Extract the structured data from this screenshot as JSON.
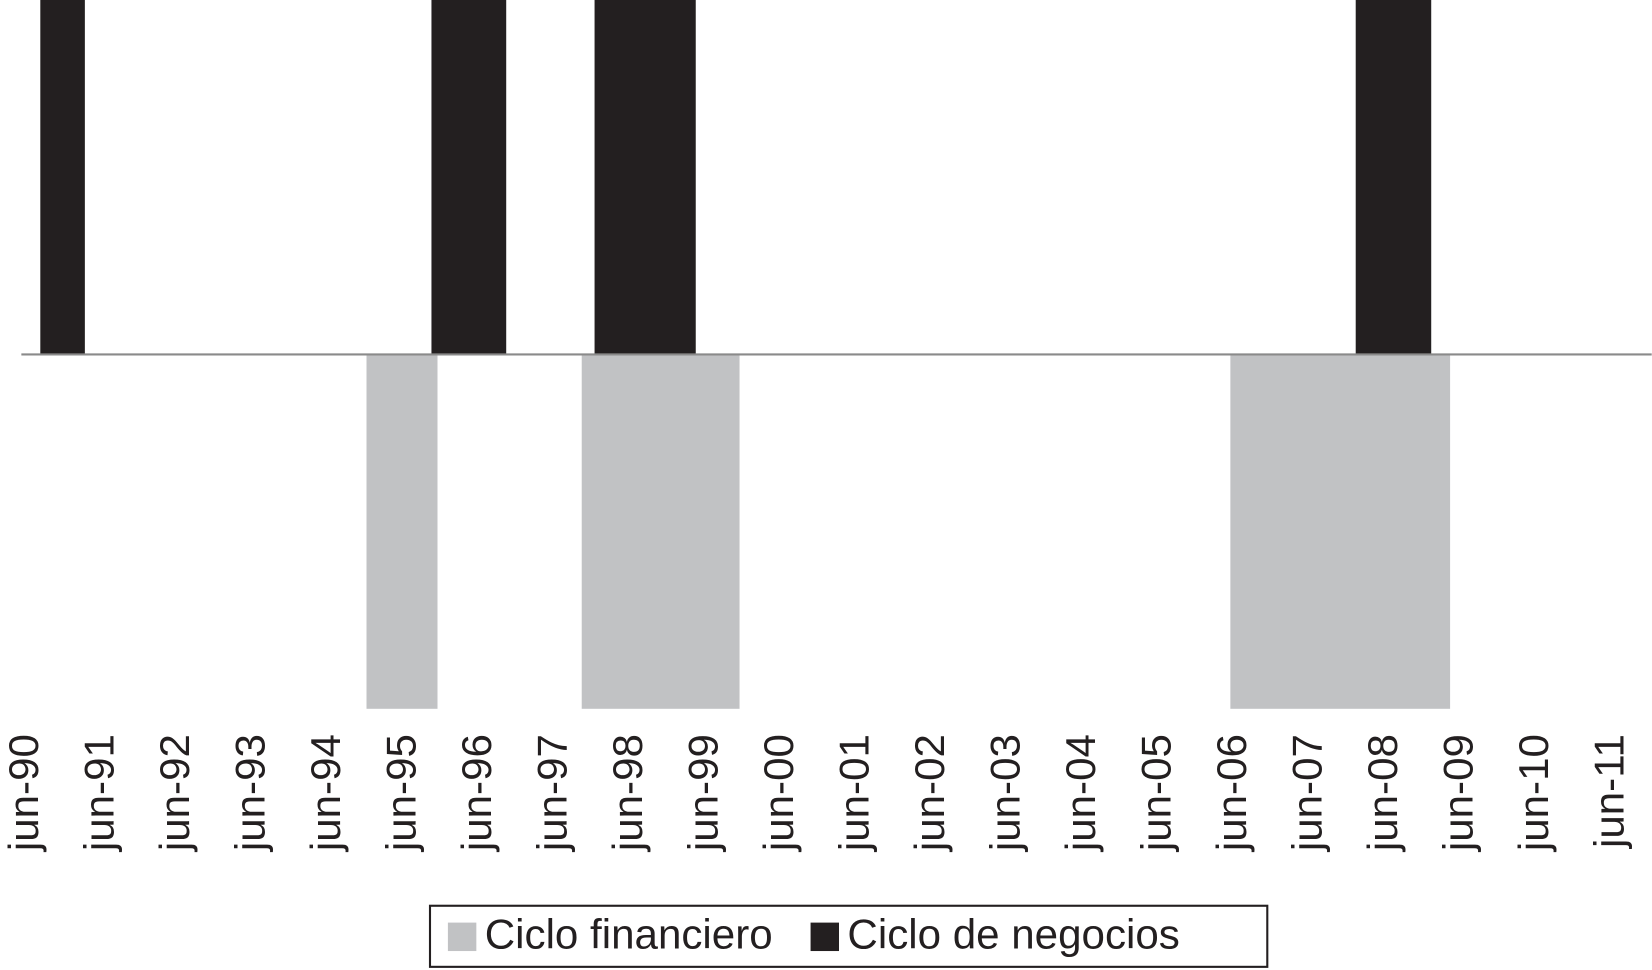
{
  "chart_data": {
    "type": "span",
    "series": [
      {
        "name": "Ciclo financiero",
        "color": "#c1c2c4",
        "x_start": [
          1995.0,
          1997.85,
          2006.44
        ],
        "x_end": [
          1995.94,
          1999.94,
          2009.35
        ],
        "values": [
          -1,
          -1,
          -1
        ]
      },
      {
        "name": "Ciclo de negocios",
        "color": "#231f20",
        "x_start": [
          1990.68,
          1995.86,
          1998.02,
          2008.1
        ],
        "x_end": [
          1991.27,
          1996.85,
          1999.36,
          2009.1
        ],
        "values": [
          1,
          1,
          1,
          1
        ]
      }
    ],
    "xlim": [
      1990.15,
      2012.02
    ],
    "ylim": [
      -1,
      1
    ],
    "xticks": [
      {
        "value": 1990.5,
        "label": "jun-90"
      },
      {
        "value": 1991.5,
        "label": "jun-91"
      },
      {
        "value": 1992.5,
        "label": "jun-92"
      },
      {
        "value": 1993.5,
        "label": "jun-93"
      },
      {
        "value": 1994.5,
        "label": "jun-94"
      },
      {
        "value": 1995.5,
        "label": "jun-95"
      },
      {
        "value": 1996.5,
        "label": "jun-96"
      },
      {
        "value": 1997.5,
        "label": "jun-97"
      },
      {
        "value": 1998.5,
        "label": "jun-98"
      },
      {
        "value": 1999.5,
        "label": "jun-99"
      },
      {
        "value": 2000.5,
        "label": "jun-00"
      },
      {
        "value": 2001.5,
        "label": "jun-01"
      },
      {
        "value": 2002.5,
        "label": "jun-02"
      },
      {
        "value": 2003.5,
        "label": "jun-03"
      },
      {
        "value": 2004.5,
        "label": "jun-04"
      },
      {
        "value": 2005.5,
        "label": "jun-05"
      },
      {
        "value": 2006.5,
        "label": "jun-06"
      },
      {
        "value": 2007.5,
        "label": "jun-07"
      },
      {
        "value": 2008.5,
        "label": "jun-08"
      },
      {
        "value": 2009.5,
        "label": "jun-09"
      },
      {
        "value": 2010.5,
        "label": "jun-10"
      },
      {
        "value": 2011.5,
        "label": "jun-11"
      }
    ],
    "legend": "bottom"
  }
}
